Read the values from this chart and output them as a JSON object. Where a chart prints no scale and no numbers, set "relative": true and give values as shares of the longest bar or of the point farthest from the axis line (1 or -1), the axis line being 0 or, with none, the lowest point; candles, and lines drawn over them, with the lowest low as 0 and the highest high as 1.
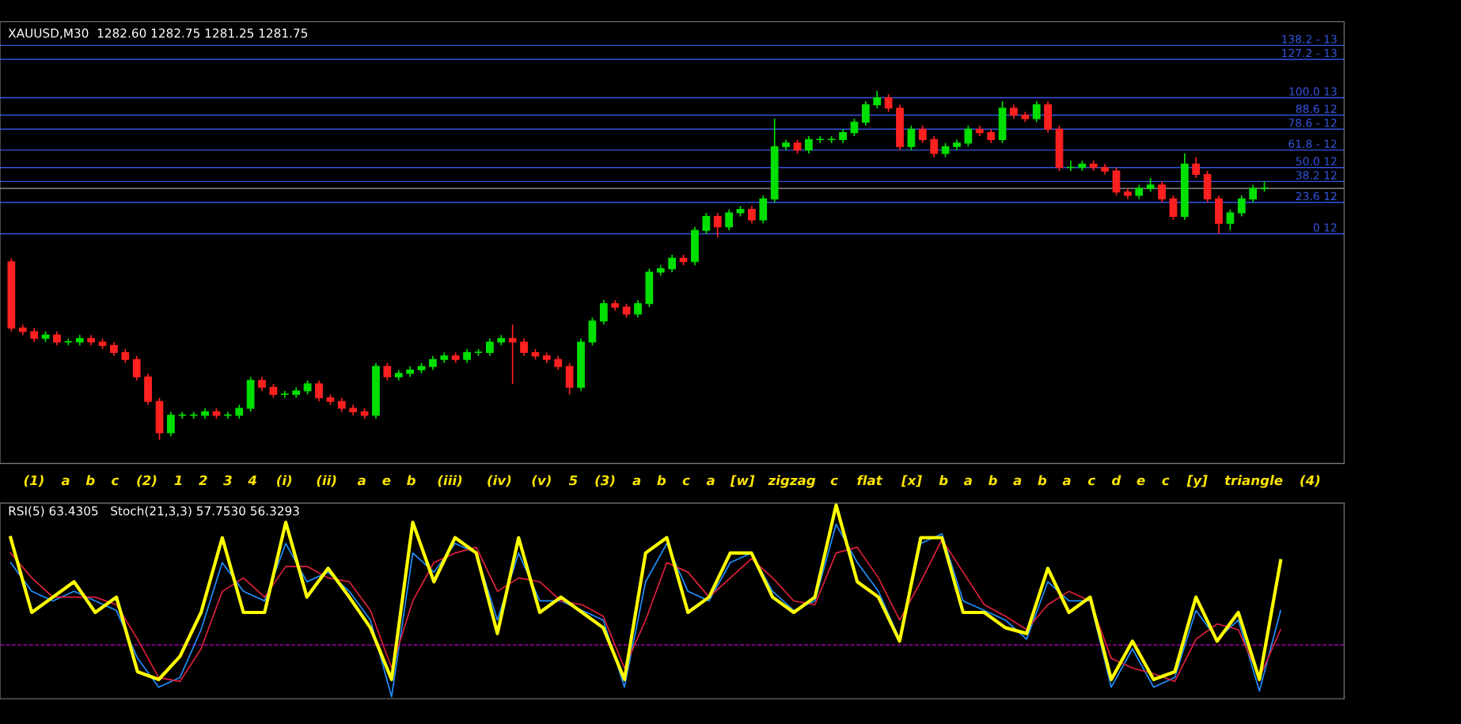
{
  "chart_data": [
    {
      "type": "candlestick",
      "title": "XAUUSD,M30  1282.60 1282.75 1281.25 1281.75",
      "relative": true,
      "categories": [
        null,
        null,
        null,
        null,
        null,
        null,
        null,
        null,
        null,
        null,
        null,
        null,
        null,
        null,
        null,
        null,
        null,
        null,
        null,
        null,
        null,
        null,
        null,
        null,
        null,
        null,
        null,
        null,
        null,
        null,
        null,
        null,
        null,
        null,
        null,
        null,
        null,
        null,
        null,
        null,
        null,
        null,
        null,
        null,
        null,
        null,
        null,
        null,
        null,
        null,
        null,
        null,
        null,
        null,
        null,
        null,
        null,
        null,
        null,
        null,
        null,
        null,
        null,
        null,
        null,
        null,
        null,
        null,
        null,
        null,
        null,
        null,
        null,
        null,
        null,
        null,
        null,
        null,
        null,
        null,
        null,
        null,
        null,
        null,
        null,
        null,
        null,
        null,
        null,
        null,
        null,
        null,
        null,
        null,
        null,
        null,
        null,
        null,
        null,
        null,
        null,
        null,
        null,
        null,
        null,
        null,
        null,
        null,
        null,
        null,
        null
      ],
      "ohlc": [
        [
          0.51,
          0.52,
          0.31,
          0.32
        ],
        [
          0.32,
          0.33,
          0.3,
          0.31
        ],
        [
          0.31,
          0.32,
          0.28,
          0.29
        ],
        [
          0.29,
          0.31,
          0.28,
          0.3
        ],
        [
          0.3,
          0.31,
          0.27,
          0.28
        ],
        [
          0.28,
          0.29,
          0.27,
          0.28
        ],
        [
          0.28,
          0.3,
          0.27,
          0.29
        ],
        [
          0.29,
          0.3,
          0.27,
          0.28
        ],
        [
          0.28,
          0.29,
          0.26,
          0.27
        ],
        [
          0.27,
          0.28,
          0.24,
          0.25
        ],
        [
          0.25,
          0.26,
          0.22,
          0.23
        ],
        [
          0.23,
          0.24,
          0.17,
          0.18
        ],
        [
          0.18,
          0.19,
          0.1,
          0.11
        ],
        [
          0.11,
          0.12,
          0.0,
          0.02
        ],
        [
          0.02,
          0.08,
          0.01,
          0.07
        ],
        [
          0.07,
          0.08,
          0.06,
          0.07
        ],
        [
          0.07,
          0.08,
          0.06,
          0.07
        ],
        [
          0.07,
          0.09,
          0.06,
          0.08
        ],
        [
          0.08,
          0.09,
          0.06,
          0.07
        ],
        [
          0.07,
          0.08,
          0.06,
          0.07
        ],
        [
          0.07,
          0.1,
          0.06,
          0.09
        ],
        [
          0.09,
          0.18,
          0.08,
          0.17
        ],
        [
          0.17,
          0.18,
          0.14,
          0.15
        ],
        [
          0.15,
          0.16,
          0.12,
          0.13
        ],
        [
          0.13,
          0.14,
          0.12,
          0.13
        ],
        [
          0.13,
          0.15,
          0.12,
          0.14
        ],
        [
          0.14,
          0.17,
          0.13,
          0.16
        ],
        [
          0.16,
          0.17,
          0.11,
          0.12
        ],
        [
          0.12,
          0.13,
          0.1,
          0.11
        ],
        [
          0.11,
          0.12,
          0.08,
          0.09
        ],
        [
          0.09,
          0.1,
          0.07,
          0.08
        ],
        [
          0.08,
          0.09,
          0.06,
          0.07
        ],
        [
          0.07,
          0.22,
          0.06,
          0.21
        ],
        [
          0.21,
          0.22,
          0.17,
          0.18
        ],
        [
          0.18,
          0.2,
          0.17,
          0.19
        ],
        [
          0.19,
          0.21,
          0.18,
          0.2
        ],
        [
          0.2,
          0.22,
          0.19,
          0.21
        ],
        [
          0.21,
          0.24,
          0.2,
          0.23
        ],
        [
          0.23,
          0.25,
          0.22,
          0.24
        ],
        [
          0.24,
          0.25,
          0.22,
          0.23
        ],
        [
          0.23,
          0.26,
          0.22,
          0.25
        ],
        [
          0.25,
          0.26,
          0.24,
          0.25
        ],
        [
          0.25,
          0.29,
          0.24,
          0.28
        ],
        [
          0.28,
          0.3,
          0.27,
          0.29
        ],
        [
          0.29,
          0.33,
          0.16,
          0.28
        ],
        [
          0.28,
          0.29,
          0.24,
          0.25
        ],
        [
          0.25,
          0.26,
          0.23,
          0.24
        ],
        [
          0.24,
          0.25,
          0.22,
          0.23
        ],
        [
          0.23,
          0.24,
          0.2,
          0.21
        ],
        [
          0.21,
          0.22,
          0.13,
          0.15
        ],
        [
          0.15,
          0.29,
          0.14,
          0.28
        ],
        [
          0.28,
          0.35,
          0.27,
          0.34
        ],
        [
          0.34,
          0.4,
          0.33,
          0.39
        ],
        [
          0.39,
          0.4,
          0.37,
          0.38
        ],
        [
          0.38,
          0.39,
          0.35,
          0.36
        ],
        [
          0.36,
          0.4,
          0.35,
          0.39
        ],
        [
          0.39,
          0.49,
          0.38,
          0.48
        ],
        [
          0.48,
          0.5,
          0.47,
          0.49
        ],
        [
          0.49,
          0.53,
          0.48,
          0.52
        ],
        [
          0.52,
          0.53,
          0.5,
          0.51
        ],
        [
          0.51,
          0.61,
          0.5,
          0.6
        ],
        [
          0.6,
          0.65,
          0.59,
          0.64
        ],
        [
          0.64,
          0.65,
          0.58,
          0.61
        ],
        [
          0.61,
          0.66,
          0.6,
          0.65
        ],
        [
          0.65,
          0.67,
          0.64,
          0.66
        ],
        [
          0.66,
          0.67,
          0.62,
          0.63
        ],
        [
          0.63,
          0.7,
          0.62,
          0.69
        ],
        [
          0.69,
          0.92,
          0.68,
          0.84
        ],
        [
          0.84,
          0.86,
          0.83,
          0.85
        ],
        [
          0.85,
          0.86,
          0.82,
          0.83
        ],
        [
          0.83,
          0.87,
          0.82,
          0.86
        ],
        [
          0.86,
          0.87,
          0.85,
          0.86
        ],
        [
          0.86,
          0.87,
          0.85,
          0.86
        ],
        [
          0.86,
          0.89,
          0.85,
          0.88
        ],
        [
          0.88,
          0.92,
          0.87,
          0.91
        ],
        [
          0.91,
          0.97,
          0.9,
          0.96
        ],
        [
          0.96,
          1.0,
          0.95,
          0.98
        ],
        [
          0.98,
          0.99,
          0.94,
          0.95
        ],
        [
          0.95,
          0.96,
          0.83,
          0.84
        ],
        [
          0.84,
          0.9,
          0.83,
          0.89
        ],
        [
          0.89,
          0.9,
          0.85,
          0.86
        ],
        [
          0.86,
          0.87,
          0.81,
          0.82
        ],
        [
          0.82,
          0.85,
          0.81,
          0.84
        ],
        [
          0.84,
          0.86,
          0.83,
          0.85
        ],
        [
          0.85,
          0.9,
          0.84,
          0.89
        ],
        [
          0.89,
          0.9,
          0.87,
          0.88
        ],
        [
          0.88,
          0.89,
          0.85,
          0.86
        ],
        [
          0.86,
          0.97,
          0.85,
          0.95
        ],
        [
          0.95,
          0.96,
          0.92,
          0.93
        ],
        [
          0.93,
          0.94,
          0.91,
          0.92
        ],
        [
          0.92,
          0.97,
          0.91,
          0.96
        ],
        [
          0.96,
          0.97,
          0.88,
          0.89
        ],
        [
          0.89,
          0.9,
          0.77,
          0.78
        ],
        [
          0.78,
          0.8,
          0.77,
          0.78
        ],
        [
          0.78,
          0.8,
          0.77,
          0.79
        ],
        [
          0.79,
          0.8,
          0.77,
          0.78
        ],
        [
          0.78,
          0.79,
          0.76,
          0.77
        ],
        [
          0.77,
          0.78,
          0.7,
          0.71
        ],
        [
          0.71,
          0.72,
          0.69,
          0.7
        ],
        [
          0.7,
          0.73,
          0.69,
          0.72
        ],
        [
          0.72,
          0.75,
          0.71,
          0.73
        ],
        [
          0.73,
          0.74,
          0.68,
          0.69
        ],
        [
          0.69,
          0.7,
          0.63,
          0.64
        ],
        [
          0.64,
          0.82,
          0.63,
          0.79
        ],
        [
          0.79,
          0.81,
          0.75,
          0.76
        ],
        [
          0.76,
          0.77,
          0.68,
          0.69
        ],
        [
          0.69,
          0.7,
          0.59,
          0.62
        ],
        [
          0.62,
          0.66,
          0.6,
          0.65
        ],
        [
          0.65,
          0.7,
          0.64,
          0.69
        ],
        [
          0.69,
          0.73,
          0.68,
          0.72
        ],
        [
          0.72,
          0.74,
          0.71,
          0.72
        ]
      ],
      "ref_lines": [
        {
          "axis": "y",
          "value": 1.13,
          "color": "#3355dd"
        },
        {
          "axis": "y",
          "value": 1.09,
          "color": "#3355dd"
        },
        {
          "axis": "y",
          "value": 0.98,
          "color": "#3355dd"
        },
        {
          "axis": "y",
          "value": 0.93,
          "color": "#3355dd"
        },
        {
          "axis": "y",
          "value": 0.89,
          "color": "#3355dd"
        },
        {
          "axis": "y",
          "value": 0.83,
          "color": "#3355dd"
        },
        {
          "axis": "y",
          "value": 0.78,
          "color": "#3355dd"
        },
        {
          "axis": "y",
          "value": 0.74,
          "color": "#3355dd"
        },
        {
          "axis": "y",
          "value": 0.72,
          "color": "#a0a0a0"
        },
        {
          "axis": "y",
          "value": 0.68,
          "color": "#3355dd"
        },
        {
          "axis": "y",
          "value": 0.59,
          "color": "#3355dd"
        }
      ],
      "annotations": [
        {
          "text": "138.2 - 13",
          "y": 1.13
        },
        {
          "text": "127.2 - 13",
          "y": 1.09
        },
        {
          "text": "100.0 13",
          "y": 0.98
        },
        {
          "text": "88.6 12",
          "y": 0.93
        },
        {
          "text": "78.6 - 12",
          "y": 0.89
        },
        {
          "text": "61.8 - 12",
          "y": 0.83
        },
        {
          "text": "50.0 12",
          "y": 0.78
        },
        {
          "text": "38.2 12",
          "y": 0.74
        },
        {
          "text": "23.6 12",
          "y": 0.68
        },
        {
          "text": "0 12",
          "y": 0.59
        },
        "(1)",
        "a",
        "b",
        "c",
        "(2)",
        "1",
        "2",
        "3",
        "4",
        "(i)",
        "(ii)",
        "a",
        "e",
        "b",
        "(iii)",
        "(iv)",
        "(v)",
        "5",
        "(3)",
        "a",
        "b",
        "c",
        "a",
        "[w]",
        "zigzag",
        "c",
        "flat",
        "[x]",
        "b",
        "a",
        "b",
        "a",
        "b",
        "a",
        "c",
        "d",
        "e",
        "c",
        "[y]",
        "triangle",
        "(4)"
      ]
    },
    {
      "type": "line",
      "title": "RSI(5) 63.4305   Stoch(21,3,3) 57.7530 56.3293",
      "relative": true,
      "categories": [
        null,
        null,
        null,
        null,
        null,
        null,
        null,
        null,
        null,
        null,
        null,
        null,
        null,
        null,
        null,
        null,
        null,
        null,
        null,
        null,
        null,
        null,
        null,
        null,
        null,
        null,
        null,
        null,
        null,
        null,
        null,
        null,
        null,
        null,
        null,
        null,
        null,
        null,
        null,
        null,
        null,
        null,
        null,
        null,
        null,
        null,
        null,
        null,
        null,
        null,
        null,
        null,
        null,
        null,
        null,
        null,
        null,
        null,
        null,
        null,
        null
      ],
      "series": [
        {
          "color": "#1e90ff",
          "values": [
            0.7,
            0.55,
            0.5,
            0.55,
            0.5,
            0.45,
            0.2,
            0.05,
            0.1,
            0.35,
            0.7,
            0.55,
            0.5,
            0.8,
            0.6,
            0.65,
            0.55,
            0.4,
            0.0,
            0.75,
            0.65,
            0.8,
            0.75,
            0.4,
            0.75,
            0.5,
            0.5,
            0.45,
            0.4,
            0.05,
            0.6,
            0.8,
            0.55,
            0.5,
            0.7,
            0.75,
            0.55,
            0.45,
            0.5,
            0.9,
            0.7,
            0.55,
            0.3,
            0.8,
            0.85,
            0.5,
            0.45,
            0.4,
            0.3,
            0.6,
            0.5,
            0.5,
            0.05,
            0.25,
            0.05,
            0.1,
            0.45,
            0.3,
            0.4,
            0.03,
            0.45
          ]
        },
        {
          "color": "#e0203c",
          "values": [
            0.75,
            0.62,
            0.52,
            0.52,
            0.52,
            0.48,
            0.3,
            0.1,
            0.08,
            0.25,
            0.55,
            0.62,
            0.52,
            0.68,
            0.68,
            0.62,
            0.6,
            0.45,
            0.15,
            0.5,
            0.7,
            0.75,
            0.78,
            0.55,
            0.62,
            0.6,
            0.5,
            0.48,
            0.42,
            0.15,
            0.4,
            0.7,
            0.65,
            0.52,
            0.62,
            0.72,
            0.62,
            0.5,
            0.48,
            0.75,
            0.78,
            0.62,
            0.4,
            0.6,
            0.82,
            0.65,
            0.48,
            0.42,
            0.35,
            0.48,
            0.55,
            0.5,
            0.2,
            0.15,
            0.12,
            0.08,
            0.3,
            0.38,
            0.35,
            0.1,
            0.35
          ]
        },
        {
          "color": "#ffff00",
          "values": [
            0.83,
            0.44,
            0.52,
            0.6,
            0.44,
            0.52,
            0.13,
            0.09,
            0.21,
            0.44,
            0.83,
            0.44,
            0.44,
            0.91,
            0.52,
            0.67,
            0.52,
            0.36,
            0.09,
            0.91,
            0.6,
            0.83,
            0.75,
            0.33,
            0.83,
            0.44,
            0.52,
            0.44,
            0.36,
            0.09,
            0.75,
            0.83,
            0.44,
            0.52,
            0.75,
            0.75,
            0.52,
            0.44,
            0.52,
            1.0,
            0.6,
            0.52,
            0.29,
            0.83,
            0.83,
            0.44,
            0.44,
            0.36,
            0.33,
            0.67,
            0.44,
            0.52,
            0.09,
            0.29,
            0.09,
            0.13,
            0.52,
            0.29,
            0.44,
            0.09,
            0.71
          ]
        }
      ],
      "ref_lines": [
        {
          "axis": "y",
          "value": 0.27,
          "label": null,
          "color": "#c000c0",
          "line_style": "dashed"
        }
      ]
    }
  ]
}
